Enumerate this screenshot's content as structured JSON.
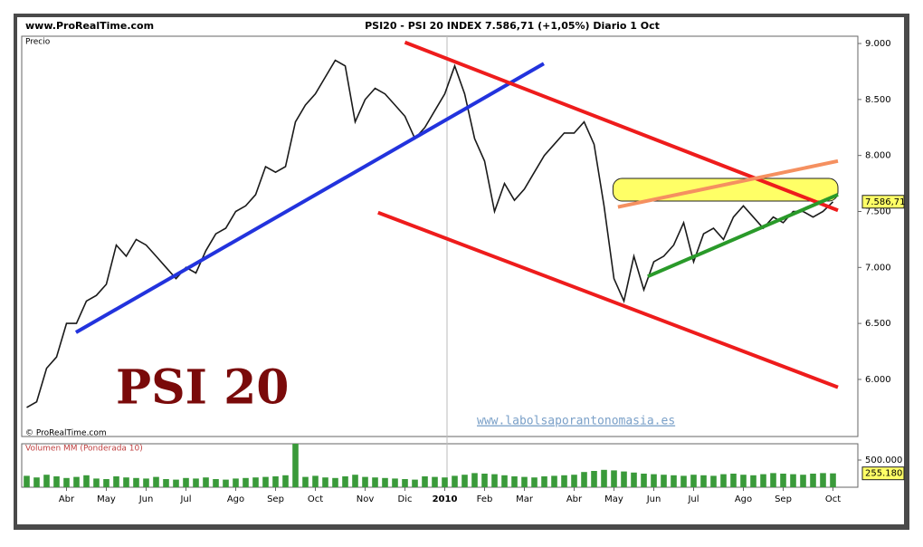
{
  "chart_data": {
    "type": "line",
    "header_left": "www.ProRealTime.com",
    "title": "PSI20 - PSI 20 INDEX   7.586,71 (+1,05%)   Diario  1 Oct",
    "price_panel_label": "Precio",
    "copyright": "© ProRealTime.com",
    "watermark": "PSI 20",
    "website": "www.labolsaporantonomasia.es",
    "volume_panel_label": "Volumen MM (Ponderada 10)",
    "categories": [
      null,
      null,
      null,
      null,
      "Abr",
      null,
      null,
      null,
      "May",
      null,
      null,
      null,
      "Jun",
      null,
      null,
      null,
      "Jul",
      null,
      null,
      null,
      null,
      "Ago",
      null,
      null,
      null,
      "Sep",
      null,
      null,
      null,
      "Oct",
      null,
      null,
      null,
      null,
      "Nov",
      null,
      null,
      null,
      "Dic",
      null,
      null,
      null,
      "2010",
      null,
      null,
      null,
      "Feb",
      null,
      null,
      null,
      "Mar",
      null,
      null,
      null,
      null,
      "Abr",
      null,
      null,
      null,
      "May",
      null,
      null,
      null,
      "Jun",
      null,
      null,
      null,
      "Jul",
      null,
      null,
      null,
      null,
      "Ago",
      null,
      null,
      null,
      "Sep",
      null,
      null,
      null,
      null,
      "Oct",
      null,
      null
    ],
    "series": [
      {
        "name": "Precio",
        "color": "#1a1a1a",
        "values": [
          5750,
          5800,
          6100,
          6200,
          6500,
          6500,
          6700,
          6750,
          6850,
          7200,
          7100,
          7250,
          7200,
          7100,
          7000,
          6900,
          7000,
          6950,
          7150,
          7300,
          7350,
          7500,
          7550,
          7650,
          7900,
          7850,
          7900,
          8300,
          8450,
          8550,
          8700,
          8850,
          8800,
          8300,
          8500,
          8600,
          8550,
          8450,
          8350,
          8150,
          8250,
          8400,
          8550,
          8800,
          8550,
          8150,
          7950,
          7500,
          7750,
          7600,
          7700,
          7850,
          8000,
          8100,
          8200,
          8200,
          8300,
          8100,
          7550,
          6900,
          6700,
          7100,
          6800,
          7050,
          7100,
          7200,
          7400,
          7050,
          7300,
          7350,
          7250,
          7450,
          7550,
          7450,
          7350,
          7450,
          7400,
          7500,
          7500,
          7450,
          7500,
          7586.71,
          null,
          null
        ]
      },
      {
        "name": "Volumen",
        "axis": "y2",
        "color": "#3a9a3a",
        "values": [
          210000,
          180000,
          230000,
          200000,
          170000,
          190000,
          220000,
          160000,
          150000,
          200000,
          180000,
          170000,
          160000,
          190000,
          150000,
          140000,
          170000,
          160000,
          180000,
          150000,
          140000,
          160000,
          170000,
          180000,
          190000,
          200000,
          220000,
          800000,
          190000,
          210000,
          180000,
          170000,
          200000,
          230000,
          190000,
          180000,
          170000,
          160000,
          150000,
          140000,
          200000,
          190000,
          180000,
          210000,
          230000,
          260000,
          250000,
          240000,
          220000,
          200000,
          190000,
          180000,
          200000,
          210000,
          220000,
          230000,
          280000,
          300000,
          320000,
          310000,
          290000,
          270000,
          250000,
          240000,
          230000,
          220000,
          210000,
          230000,
          220000,
          210000,
          240000,
          250000,
          230000,
          220000,
          240000,
          260000,
          250000,
          240000,
          230000,
          250000,
          260000,
          255180,
          null,
          null
        ]
      }
    ],
    "ylim": [
      5490,
      9065
    ],
    "yticks": [
      {
        "value": 6000,
        "label": "6.000"
      },
      {
        "value": 6500,
        "label": "6.500"
      },
      {
        "value": 7000,
        "label": "7.000"
      },
      {
        "value": 7500,
        "label": "7.500"
      },
      {
        "value": 8000,
        "label": "8.000"
      },
      {
        "value": 8500,
        "label": "8.500"
      },
      {
        "value": 9000,
        "label": "9.000"
      }
    ],
    "y2lim": [
      0,
      800000
    ],
    "y2ticks": [
      {
        "value": 500000,
        "label": "500.000"
      }
    ],
    "last_price": {
      "value": 7586.71,
      "label": "7.586,71"
    },
    "last_volume": {
      "value": 255180,
      "label": "255.180"
    },
    "trendlines": [
      {
        "color": "#2233dd",
        "points": [
          [
            4.95,
            6420
          ],
          [
            51.95,
            8820
          ]
        ]
      },
      {
        "color": "#ee1c1c",
        "points": [
          [
            38.0,
            9010
          ],
          [
            81.5,
            7510
          ]
        ]
      },
      {
        "color": "#ee1c1c",
        "points": [
          [
            35.3,
            7490
          ],
          [
            81.5,
            5930
          ]
        ]
      },
      {
        "color": "#f59060",
        "points": [
          [
            59.4,
            7540
          ],
          [
            81.5,
            7950
          ]
        ]
      },
      {
        "color": "#2a9a2a",
        "points": [
          [
            62.4,
            6920
          ],
          [
            81.5,
            7650
          ]
        ]
      }
    ],
    "range_box": {
      "from": 58.9,
      "to": 81.5,
      "top": 7795,
      "bottom": 7593,
      "color": "#ffff66"
    }
  }
}
